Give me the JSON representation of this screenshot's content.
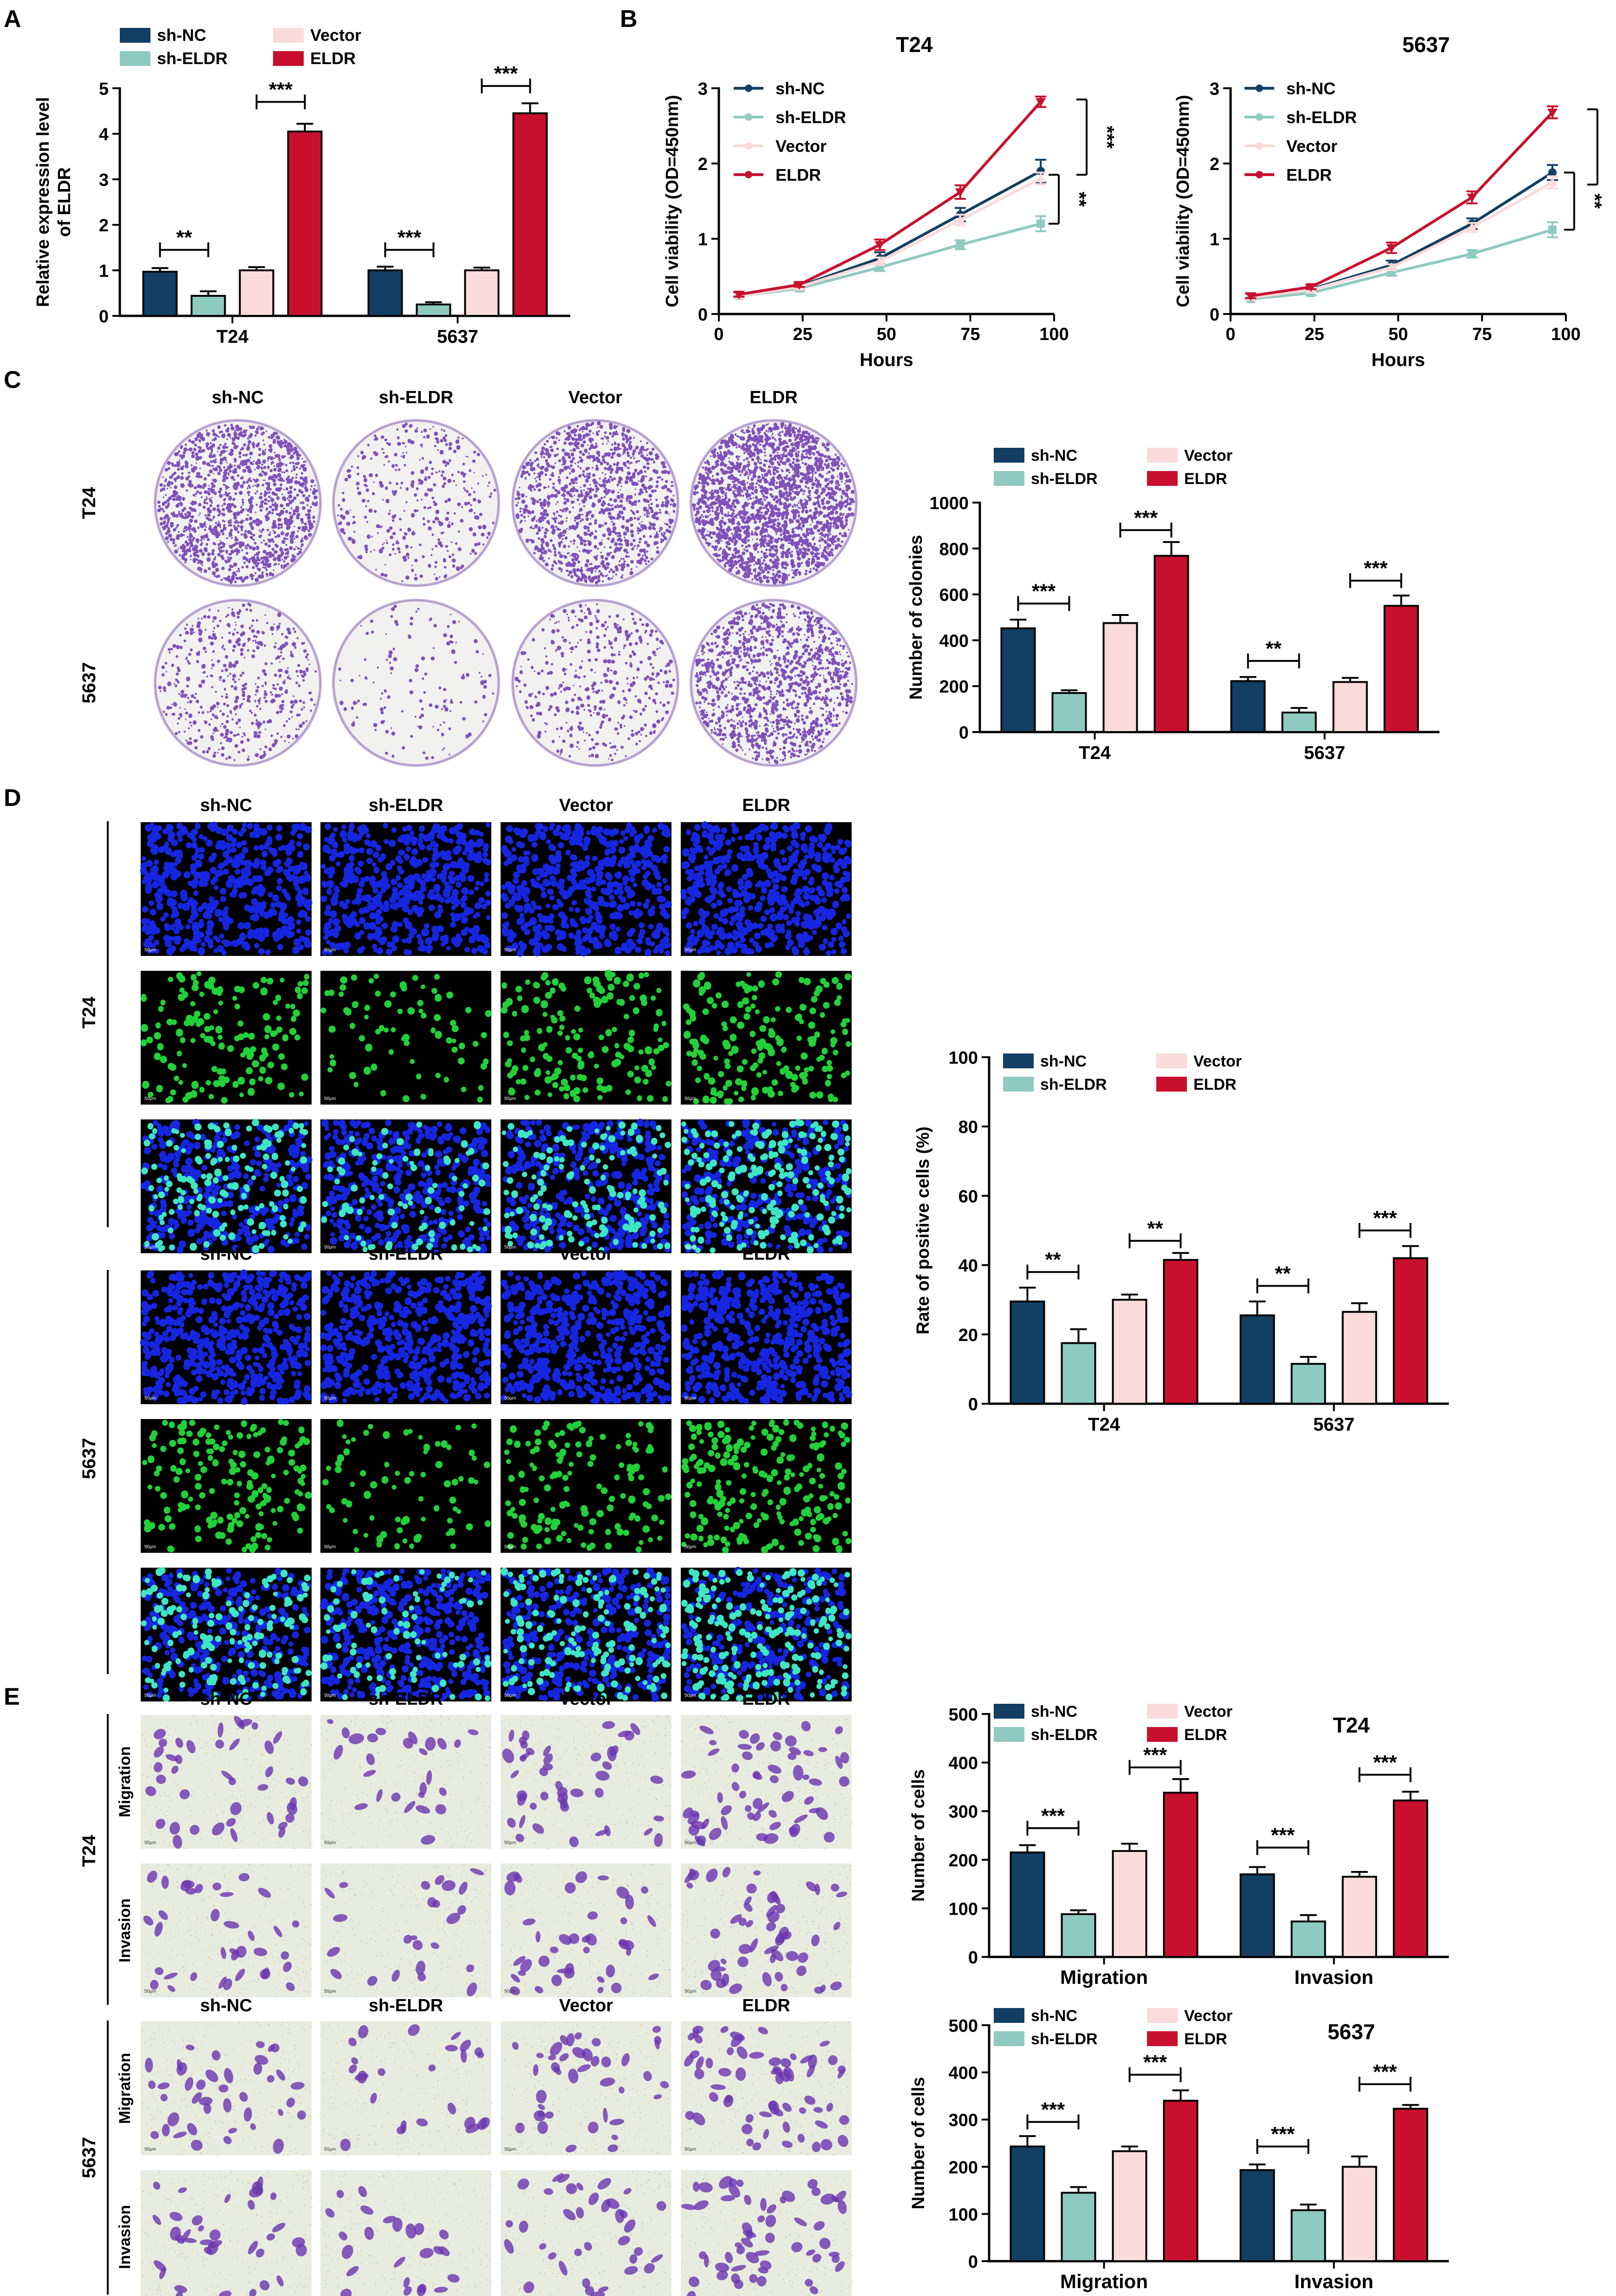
{
  "colors": {
    "shNC": "#123f63",
    "shELDR": "#8fcac0",
    "vector": "#fbdada",
    "eldr": "#c8102e",
    "dapi": "#1626e0",
    "edu": "#22d13a",
    "crystal": "#6c35b0"
  },
  "legend": {
    "sh_nc": "sh-NC",
    "sh_eldr": "sh-ELDR",
    "vector": "Vector",
    "eldr": "ELDR"
  },
  "panels": {
    "A": "A",
    "B": "B",
    "C": "C",
    "D": "D",
    "E": "E"
  },
  "groups": [
    "sh-NC",
    "sh-ELDR",
    "Vector",
    "ELDR"
  ],
  "cell_lines": [
    "T24",
    "5637"
  ],
  "assays": [
    "Migration",
    "Invasion"
  ],
  "scale_bar": "50μm",
  "chart_data": [
    {
      "id": "A",
      "type": "bar",
      "title": "",
      "ylabel": "Relative expression level of ELDR",
      "ylabel_lines": [
        "Relative expression level",
        "of ELDR"
      ],
      "xlabel": "",
      "ylim": [
        0,
        5
      ],
      "yticks": [
        0,
        1,
        2,
        3,
        4,
        5
      ],
      "categories": [
        "T24",
        "5637"
      ],
      "series": [
        {
          "name": "sh-NC",
          "values": [
            0.97,
            1.0
          ],
          "err": [
            0.08,
            0.08
          ]
        },
        {
          "name": "sh-ELDR",
          "values": [
            0.44,
            0.25
          ],
          "err": [
            0.1,
            0.05
          ]
        },
        {
          "name": "Vector",
          "values": [
            1.0,
            1.0
          ],
          "err": [
            0.07,
            0.06
          ]
        },
        {
          "name": "ELDR",
          "values": [
            4.05,
            4.45
          ],
          "err": [
            0.17,
            0.22
          ]
        }
      ],
      "annotations": [
        {
          "category": 0,
          "from": 0,
          "to": 1,
          "text": "**",
          "y": 1.45
        },
        {
          "category": 0,
          "from": 2,
          "to": 3,
          "text": "***",
          "y": 4.7
        },
        {
          "category": 1,
          "from": 0,
          "to": 1,
          "text": "***",
          "y": 1.45
        },
        {
          "category": 1,
          "from": 2,
          "to": 3,
          "text": "***",
          "y": 5.05
        }
      ]
    },
    {
      "id": "B1",
      "type": "line",
      "title": "T24",
      "xlabel": "Hours",
      "ylabel": "Cell viability (OD=450nm)",
      "xlim": [
        0,
        100
      ],
      "ylim": [
        0,
        3
      ],
      "xticks": [
        0,
        25,
        50,
        75,
        100
      ],
      "yticks": [
        0,
        1,
        2,
        3
      ],
      "x": [
        6,
        24,
        48,
        72,
        96
      ],
      "series": [
        {
          "name": "sh-NC",
          "values": [
            0.25,
            0.37,
            0.74,
            1.32,
            1.9
          ],
          "err": [
            0.03,
            0.03,
            0.08,
            0.09,
            0.15
          ]
        },
        {
          "name": "sh-ELDR",
          "values": [
            0.24,
            0.34,
            0.62,
            0.92,
            1.2
          ],
          "err": [
            0.03,
            0.03,
            0.05,
            0.06,
            0.1
          ]
        },
        {
          "name": "Vector",
          "values": [
            0.24,
            0.36,
            0.7,
            1.25,
            1.8
          ],
          "err": [
            0.03,
            0.03,
            0.05,
            0.07,
            0.08
          ]
        },
        {
          "name": "ELDR",
          "values": [
            0.26,
            0.39,
            0.92,
            1.62,
            2.82
          ],
          "err": [
            0.03,
            0.03,
            0.07,
            0.09,
            0.07
          ]
        }
      ],
      "annotations": [
        {
          "text": "***",
          "y_from": 2.85,
          "y_to": 1.85
        },
        {
          "text": "**",
          "y_from": 1.85,
          "y_to": 1.2
        }
      ]
    },
    {
      "id": "B2",
      "type": "line",
      "title": "5637",
      "xlabel": "Hours",
      "ylabel": "Cell viability (OD=450nm)",
      "xlim": [
        0,
        100
      ],
      "ylim": [
        0,
        3
      ],
      "xticks": [
        0,
        25,
        50,
        75,
        100
      ],
      "yticks": [
        0,
        1,
        2,
        3
      ],
      "x": [
        6,
        24,
        48,
        72,
        96
      ],
      "series": [
        {
          "name": "sh-NC",
          "values": [
            0.22,
            0.33,
            0.65,
            1.2,
            1.88
          ],
          "err": [
            0.03,
            0.03,
            0.06,
            0.07,
            0.1
          ]
        },
        {
          "name": "sh-ELDR",
          "values": [
            0.2,
            0.28,
            0.55,
            0.8,
            1.12
          ],
          "err": [
            0.02,
            0.03,
            0.04,
            0.05,
            0.1
          ]
        },
        {
          "name": "Vector",
          "values": [
            0.22,
            0.32,
            0.62,
            1.15,
            1.75
          ],
          "err": [
            0.03,
            0.03,
            0.04,
            0.06,
            0.08
          ]
        },
        {
          "name": "ELDR",
          "values": [
            0.24,
            0.36,
            0.88,
            1.55,
            2.68
          ],
          "err": [
            0.03,
            0.03,
            0.07,
            0.08,
            0.08
          ]
        }
      ],
      "annotations": [
        {
          "text": "***",
          "y_from": 2.72,
          "y_to": 1.72
        },
        {
          "text": "**",
          "y_from": 1.88,
          "y_to": 1.12
        }
      ]
    },
    {
      "id": "C",
      "type": "bar",
      "title": "",
      "ylabel": "Number of colonies",
      "xlabel": "",
      "ylim": [
        0,
        1000
      ],
      "yticks": [
        0,
        200,
        400,
        600,
        800,
        1000
      ],
      "categories": [
        "T24",
        "5637"
      ],
      "series": [
        {
          "name": "sh-NC",
          "values": [
            452,
            222
          ],
          "err": [
            38,
            18
          ]
        },
        {
          "name": "sh-ELDR",
          "values": [
            170,
            85
          ],
          "err": [
            12,
            20
          ]
        },
        {
          "name": "Vector",
          "values": [
            475,
            218
          ],
          "err": [
            35,
            18
          ]
        },
        {
          "name": "ELDR",
          "values": [
            768,
            550
          ],
          "err": [
            60,
            45
          ]
        }
      ],
      "annotations": [
        {
          "category": 0,
          "from": 0,
          "to": 1,
          "text": "***",
          "y": 560
        },
        {
          "category": 0,
          "from": 2,
          "to": 3,
          "text": "***",
          "y": 880
        },
        {
          "category": 1,
          "from": 0,
          "to": 1,
          "text": "**",
          "y": 310
        },
        {
          "category": 1,
          "from": 2,
          "to": 3,
          "text": "***",
          "y": 660
        }
      ]
    },
    {
      "id": "D",
      "type": "bar",
      "title": "",
      "ylabel": "Rate of positive cells (%)",
      "xlabel": "",
      "ylim": [
        0,
        100
      ],
      "yticks": [
        0,
        20,
        40,
        60,
        80,
        100
      ],
      "categories": [
        "T24",
        "5637"
      ],
      "series": [
        {
          "name": "sh-NC",
          "values": [
            29.5,
            25.5
          ],
          "err": [
            4,
            4
          ]
        },
        {
          "name": "sh-ELDR",
          "values": [
            17.5,
            11.5
          ],
          "err": [
            4,
            2
          ]
        },
        {
          "name": "Vector",
          "values": [
            30,
            26.5
          ],
          "err": [
            1.5,
            2.5
          ]
        },
        {
          "name": "ELDR",
          "values": [
            41.5,
            42
          ],
          "err": [
            2,
            3.5
          ]
        }
      ],
      "annotations": [
        {
          "category": 0,
          "from": 0,
          "to": 1,
          "text": "**",
          "y": 38
        },
        {
          "category": 0,
          "from": 2,
          "to": 3,
          "text": "**",
          "y": 47
        },
        {
          "category": 1,
          "from": 0,
          "to": 1,
          "text": "**",
          "y": 34
        },
        {
          "category": 1,
          "from": 2,
          "to": 3,
          "text": "***",
          "y": 50
        }
      ]
    },
    {
      "id": "E1",
      "type": "bar",
      "title": "T24",
      "ylabel": "Number of cells",
      "xlabel": "",
      "ylim": [
        0,
        500
      ],
      "yticks": [
        0,
        100,
        200,
        300,
        400,
        500
      ],
      "categories": [
        "Migration",
        "Invasion"
      ],
      "series": [
        {
          "name": "sh-NC",
          "values": [
            215,
            170
          ],
          "err": [
            15,
            15
          ]
        },
        {
          "name": "sh-ELDR",
          "values": [
            88,
            73
          ],
          "err": [
            8,
            13
          ]
        },
        {
          "name": "Vector",
          "values": [
            218,
            165
          ],
          "err": [
            15,
            10
          ]
        },
        {
          "name": "ELDR",
          "values": [
            338,
            322
          ],
          "err": [
            28,
            18
          ]
        }
      ],
      "annotations": [
        {
          "category": 0,
          "from": 0,
          "to": 1,
          "text": "***",
          "y": 265
        },
        {
          "category": 0,
          "from": 2,
          "to": 3,
          "text": "***",
          "y": 390
        },
        {
          "category": 1,
          "from": 0,
          "to": 1,
          "text": "***",
          "y": 225
        },
        {
          "category": 1,
          "from": 2,
          "to": 3,
          "text": "***",
          "y": 375
        }
      ]
    },
    {
      "id": "E2",
      "type": "bar",
      "title": "5637",
      "ylabel": "Number of cells",
      "xlabel": "",
      "ylim": [
        0,
        500
      ],
      "yticks": [
        0,
        100,
        200,
        300,
        400,
        500
      ],
      "categories": [
        "Migration",
        "Invasion"
      ],
      "series": [
        {
          "name": "sh-NC",
          "values": [
            243,
            193
          ],
          "err": [
            22,
            12
          ]
        },
        {
          "name": "sh-ELDR",
          "values": [
            145,
            108
          ],
          "err": [
            12,
            12
          ]
        },
        {
          "name": "Vector",
          "values": [
            233,
            200
          ],
          "err": [
            10,
            22
          ]
        },
        {
          "name": "ELDR",
          "values": [
            340,
            323
          ],
          "err": [
            22,
            8
          ]
        }
      ],
      "annotations": [
        {
          "category": 0,
          "from": 0,
          "to": 1,
          "text": "***",
          "y": 295
        },
        {
          "category": 0,
          "from": 2,
          "to": 3,
          "text": "***",
          "y": 395
        },
        {
          "category": 1,
          "from": 0,
          "to": 1,
          "text": "***",
          "y": 243
        },
        {
          "category": 1,
          "from": 2,
          "to": 3,
          "text": "***",
          "y": 375
        }
      ]
    }
  ]
}
